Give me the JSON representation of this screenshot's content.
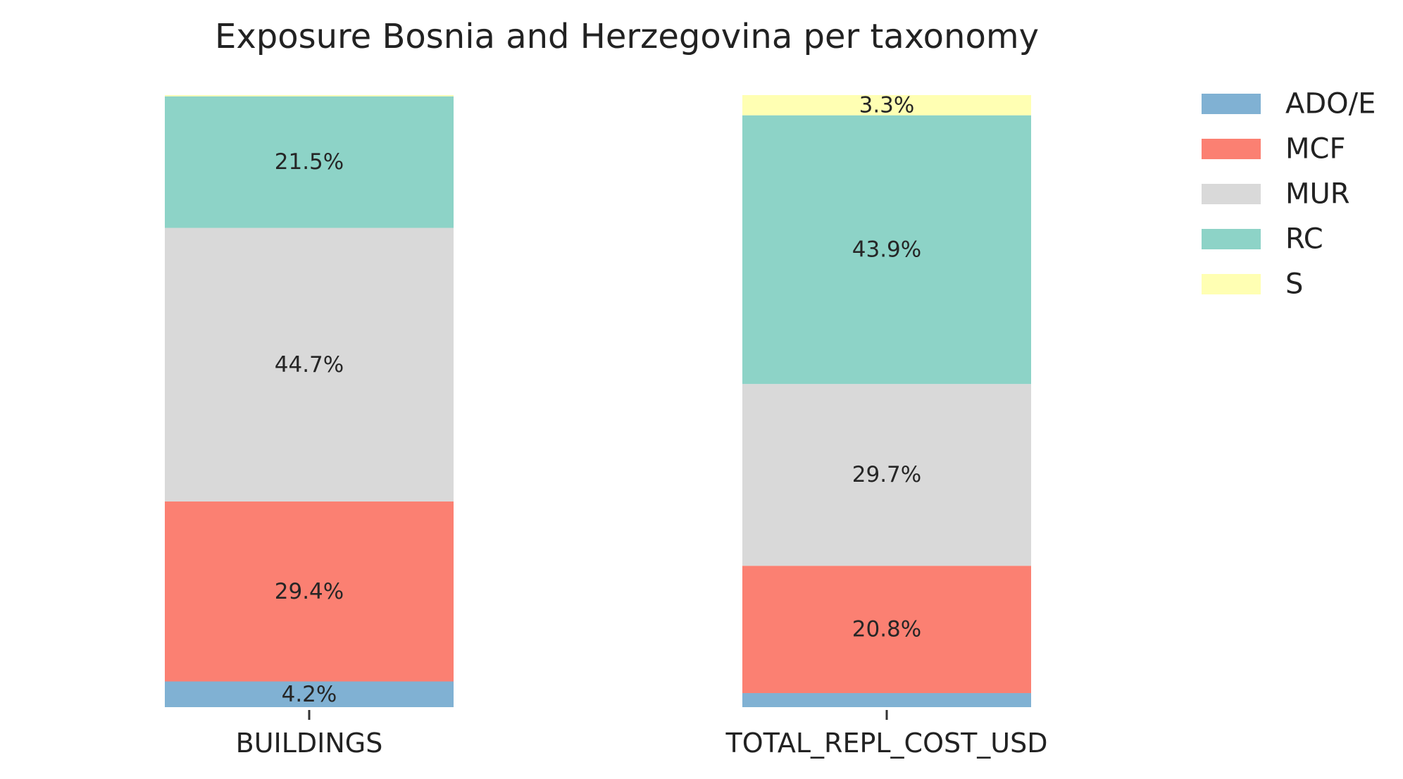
{
  "chart_data": {
    "type": "bar",
    "stacked": true,
    "normalized_percent": true,
    "title": "Exposure Bosnia and Herzegovina per taxonomy",
    "xlabel": "",
    "ylabel": "",
    "ylim": [
      0,
      100
    ],
    "grid": false,
    "legend_position": "right",
    "categories": [
      "BUILDINGS",
      "TOTAL_REPL_COST_USD"
    ],
    "series": [
      {
        "name": "ADO/E",
        "color": "#80b1d3",
        "values": [
          4.2,
          2.3
        ],
        "labels": [
          "4.2%",
          ""
        ]
      },
      {
        "name": "MCF",
        "color": "#fb8072",
        "values": [
          29.4,
          20.8
        ],
        "labels": [
          "29.4%",
          "20.8%"
        ]
      },
      {
        "name": "MUR",
        "color": "#d9d9d9",
        "values": [
          44.7,
          29.7
        ],
        "labels": [
          "44.7%",
          "29.7%"
        ]
      },
      {
        "name": "RC",
        "color": "#8dd3c7",
        "values": [
          21.5,
          43.9
        ],
        "labels": [
          "21.5%",
          "43.9%"
        ]
      },
      {
        "name": "S",
        "color": "#ffffb3",
        "values": [
          0.2,
          3.3
        ],
        "labels": [
          "",
          "3.3%"
        ]
      }
    ]
  }
}
